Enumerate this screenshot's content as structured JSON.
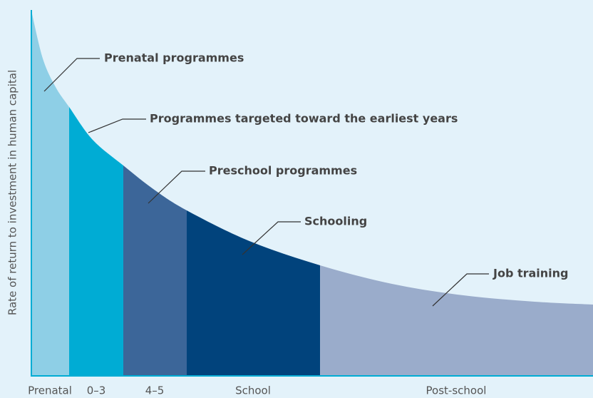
{
  "y_axis_label": "Rate of return to investment in human capital",
  "stages": [
    {
      "label": "Prenatal",
      "annotation": "Prenatal programmes"
    },
    {
      "label": "0–3",
      "annotation": "Programmes targeted toward the earliest years"
    },
    {
      "label": "4–5",
      "annotation": "Preschool programmes"
    },
    {
      "label": "School",
      "annotation": "Schooling"
    },
    {
      "label": "Post-school",
      "annotation": "Job training"
    }
  ]
}
